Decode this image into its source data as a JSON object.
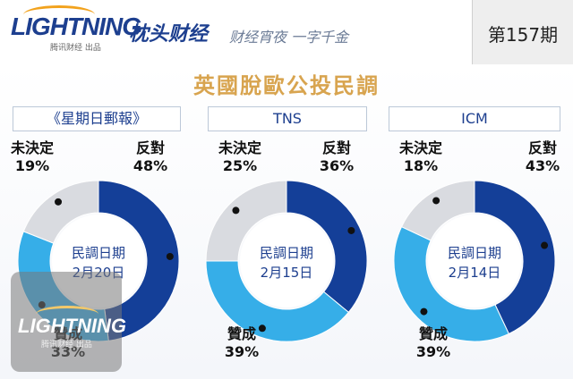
{
  "header": {
    "brand": "LIGHTNING",
    "brand_sub": "腾讯财经 出品",
    "column": "· 枕头财经",
    "slogan": "财经宵夜 一字千金",
    "issue": "第157期"
  },
  "watermark": {
    "brand": "LIGHTNING",
    "sub": "腾讯财经 出品"
  },
  "colors": {
    "against": "#143f98",
    "for": "#36aee8",
    "undecided": "#d9dbe0",
    "title": "#d8a44f"
  },
  "chart_data": {
    "type": "pie",
    "title": "英國脫歐公投民調",
    "polls": [
      {
        "source": "《星期日郵報》",
        "date_label": "民調日期",
        "date": "2月20日",
        "slices": [
          {
            "label": "反對",
            "value": 48
          },
          {
            "label": "贊成",
            "value": 33
          },
          {
            "label": "未決定",
            "value": 19
          }
        ]
      },
      {
        "source": "TNS",
        "date_label": "民調日期",
        "date": "2月15日",
        "slices": [
          {
            "label": "反對",
            "value": 36
          },
          {
            "label": "贊成",
            "value": 39
          },
          {
            "label": "未決定",
            "value": 25
          }
        ]
      },
      {
        "source": "ICM",
        "date_label": "民調日期",
        "date": "2月14日",
        "slices": [
          {
            "label": "反對",
            "value": 43
          },
          {
            "label": "贊成",
            "value": 39
          },
          {
            "label": "未決定",
            "value": 18
          }
        ]
      }
    ]
  }
}
